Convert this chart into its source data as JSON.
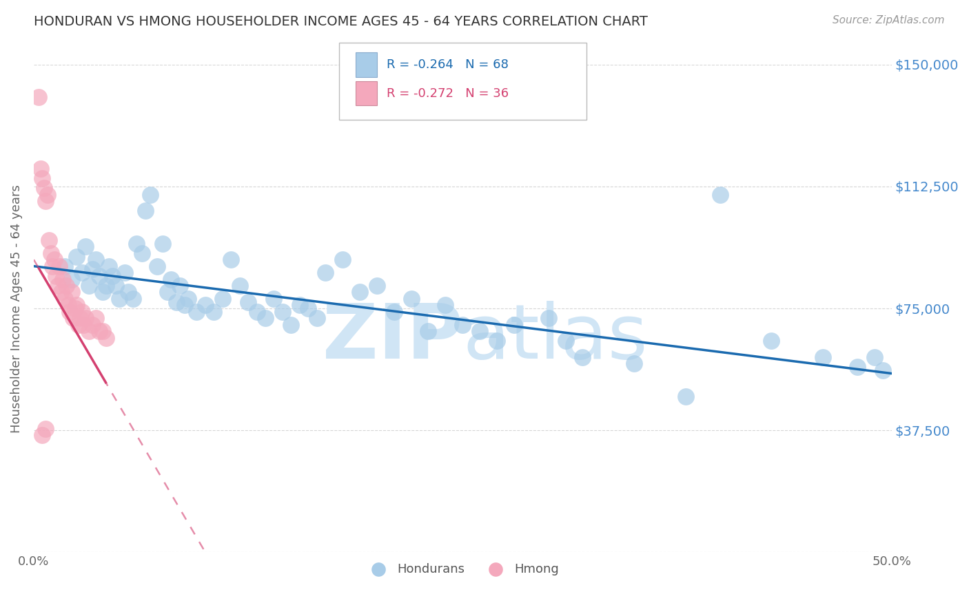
{
  "title": "HONDURAN VS HMONG HOUSEHOLDER INCOME AGES 45 - 64 YEARS CORRELATION CHART",
  "source": "Source: ZipAtlas.com",
  "ylabel": "Householder Income Ages 45 - 64 years",
  "xmin": 0.0,
  "xmax": 0.5,
  "ymin": 0,
  "ymax": 150000,
  "yticks": [
    0,
    37500,
    75000,
    112500,
    150000
  ],
  "xticks": [
    0.0,
    0.1,
    0.2,
    0.3,
    0.4,
    0.5
  ],
  "xtick_labels": [
    "0.0%",
    "",
    "",
    "",
    "",
    "50.0%"
  ],
  "hondurans_R": -0.264,
  "hondurans_N": 68,
  "hmong_R": -0.272,
  "hmong_N": 36,
  "hondurans_color": "#a8cce8",
  "hmong_color": "#f4a8bc",
  "hondurans_trend_color": "#1a6aaf",
  "hmong_trend_color": "#d44070",
  "background_color": "#ffffff",
  "grid_color": "#cccccc",
  "title_color": "#333333",
  "right_tick_color": "#4488cc",
  "watermark_color": "#d0e5f5",
  "hondurans_x": [
    0.018,
    0.022,
    0.025,
    0.028,
    0.03,
    0.032,
    0.034,
    0.036,
    0.038,
    0.04,
    0.042,
    0.044,
    0.046,
    0.048,
    0.05,
    0.053,
    0.055,
    0.058,
    0.06,
    0.063,
    0.065,
    0.068,
    0.072,
    0.075,
    0.078,
    0.08,
    0.083,
    0.085,
    0.088,
    0.09,
    0.095,
    0.1,
    0.105,
    0.11,
    0.115,
    0.12,
    0.125,
    0.13,
    0.135,
    0.14,
    0.145,
    0.15,
    0.155,
    0.16,
    0.165,
    0.17,
    0.18,
    0.19,
    0.2,
    0.21,
    0.22,
    0.23,
    0.24,
    0.25,
    0.26,
    0.27,
    0.28,
    0.3,
    0.31,
    0.32,
    0.35,
    0.38,
    0.4,
    0.43,
    0.46,
    0.48,
    0.49,
    0.495
  ],
  "hondurans_y": [
    88000,
    84000,
    91000,
    86000,
    94000,
    82000,
    87000,
    90000,
    85000,
    80000,
    82000,
    88000,
    85000,
    82000,
    78000,
    86000,
    80000,
    78000,
    95000,
    92000,
    105000,
    110000,
    88000,
    95000,
    80000,
    84000,
    77000,
    82000,
    76000,
    78000,
    74000,
    76000,
    74000,
    78000,
    90000,
    82000,
    77000,
    74000,
    72000,
    78000,
    74000,
    70000,
    76000,
    75000,
    72000,
    86000,
    90000,
    80000,
    82000,
    74000,
    78000,
    68000,
    76000,
    70000,
    68000,
    65000,
    70000,
    72000,
    65000,
    60000,
    58000,
    48000,
    110000,
    65000,
    60000,
    57000,
    60000,
    56000
  ],
  "hmong_x": [
    0.003,
    0.004,
    0.005,
    0.006,
    0.007,
    0.008,
    0.009,
    0.01,
    0.011,
    0.012,
    0.013,
    0.014,
    0.015,
    0.016,
    0.017,
    0.018,
    0.019,
    0.02,
    0.021,
    0.022,
    0.023,
    0.024,
    0.025,
    0.026,
    0.027,
    0.028,
    0.029,
    0.03,
    0.032,
    0.034,
    0.036,
    0.038,
    0.04,
    0.042,
    0.005,
    0.007
  ],
  "hmong_y": [
    140000,
    118000,
    115000,
    112000,
    108000,
    110000,
    96000,
    92000,
    88000,
    90000,
    85000,
    82000,
    88000,
    80000,
    84000,
    78000,
    82000,
    76000,
    74000,
    80000,
    72000,
    75000,
    76000,
    70000,
    72000,
    74000,
    70000,
    72000,
    68000,
    70000,
    72000,
    68000,
    68000,
    66000,
    36000,
    38000
  ],
  "hmong_trend_y_at_0": 90000,
  "hmong_trend_slope": -900000,
  "hondurans_trend_y_at_0": 88000,
  "hondurans_trend_y_at_50": 55000
}
